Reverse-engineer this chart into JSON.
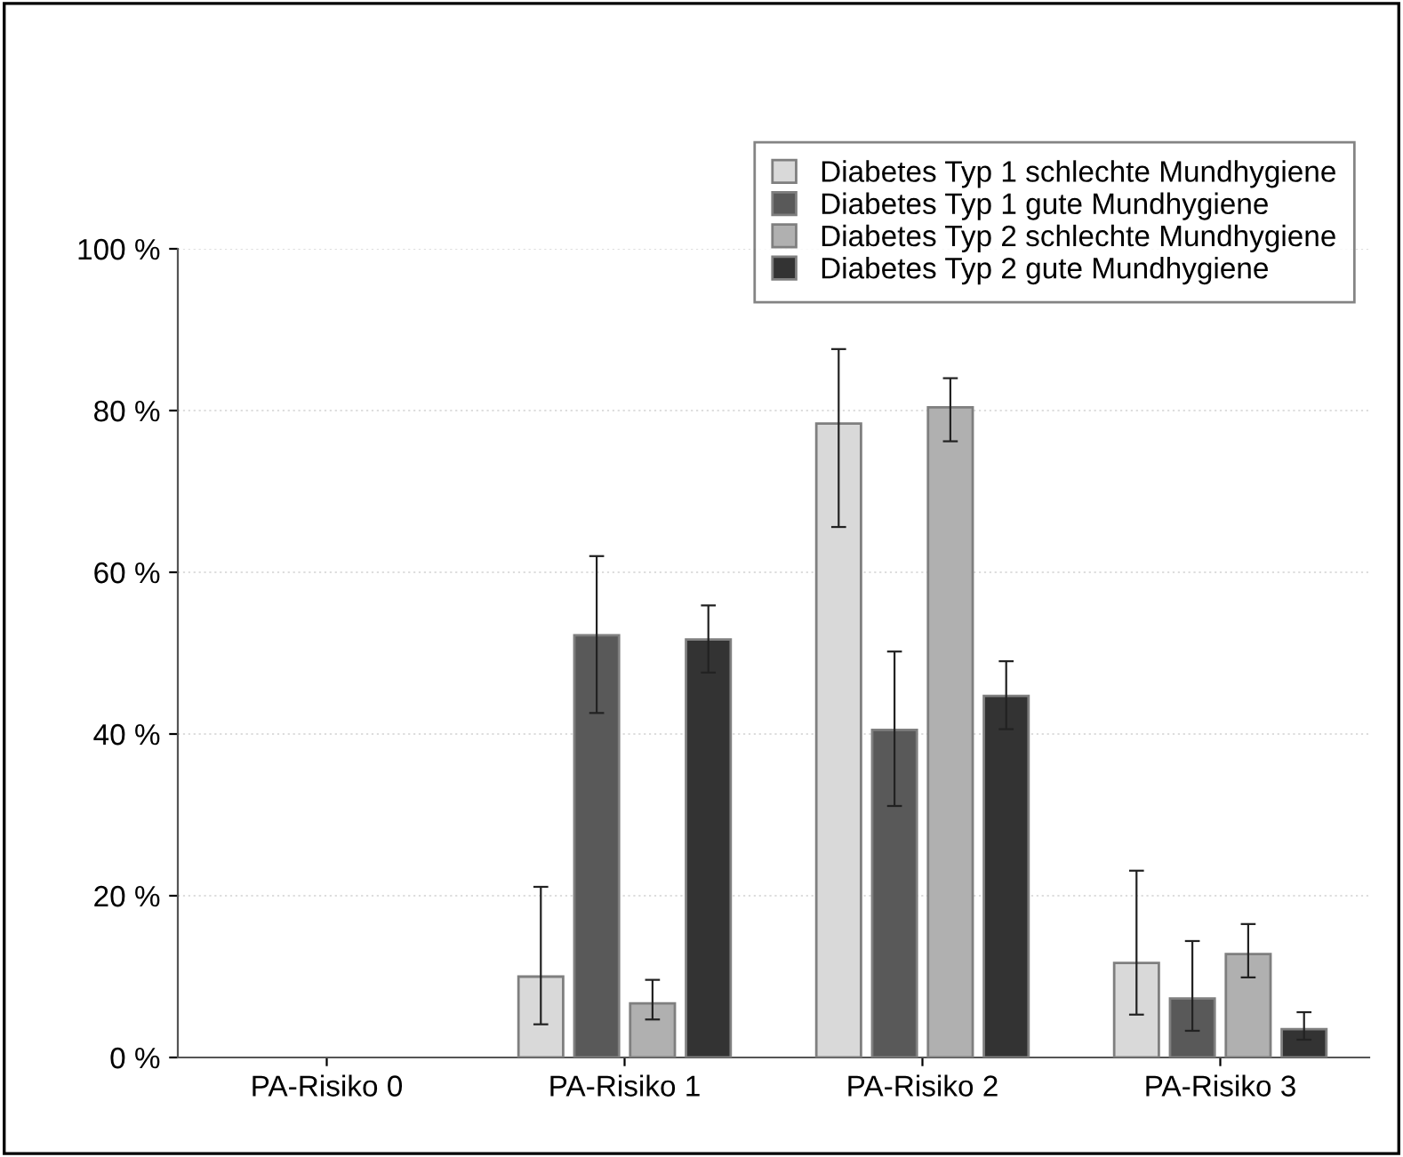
{
  "chart_data": {
    "type": "bar",
    "categories": [
      "PA-Risiko 0",
      "PA-Risiko 1",
      "PA-Risiko 2",
      "PA-Risiko 3"
    ],
    "series": [
      {
        "name": "Diabetes Typ 1 schlechte Mundhygiene",
        "color": "#d9d9d9",
        "values": [
          null,
          10.0,
          78.4,
          11.7
        ],
        "errors": [
          null,
          [
            4.1,
            21.1
          ],
          [
            65.6,
            87.6
          ],
          [
            5.3,
            23.1
          ]
        ]
      },
      {
        "name": "Diabetes Typ 1 gute Mundhygiene",
        "color": "#595959",
        "values": [
          null,
          52.2,
          40.5,
          7.3
        ],
        "errors": [
          null,
          [
            42.6,
            62.0
          ],
          [
            31.1,
            50.2
          ],
          [
            3.3,
            14.4
          ]
        ]
      },
      {
        "name": "Diabetes Typ 2 schlechte Mundhygiene",
        "color": "#b0b0b0",
        "values": [
          null,
          6.7,
          80.4,
          12.8
        ],
        "errors": [
          null,
          [
            4.7,
            9.6
          ],
          [
            76.2,
            84.0
          ],
          [
            9.9,
            16.5
          ]
        ]
      },
      {
        "name": "Diabetes Typ 2 gute Mundhygiene",
        "color": "#333333",
        "values": [
          null,
          51.7,
          44.7,
          3.5
        ],
        "errors": [
          null,
          [
            47.6,
            55.9
          ],
          [
            40.6,
            49.0
          ],
          [
            2.2,
            5.6
          ]
        ]
      }
    ],
    "ylim": [
      0,
      100
    ],
    "yticks": [
      {
        "value": 0,
        "label": "0 %"
      },
      {
        "value": 20,
        "label": "20 %"
      },
      {
        "value": 40,
        "label": "40 %"
      },
      {
        "value": 60,
        "label": "60 %"
      },
      {
        "value": 80,
        "label": "80 %"
      },
      {
        "value": 100,
        "label": "100 %"
      }
    ],
    "grid": "y",
    "legend": "top right"
  }
}
